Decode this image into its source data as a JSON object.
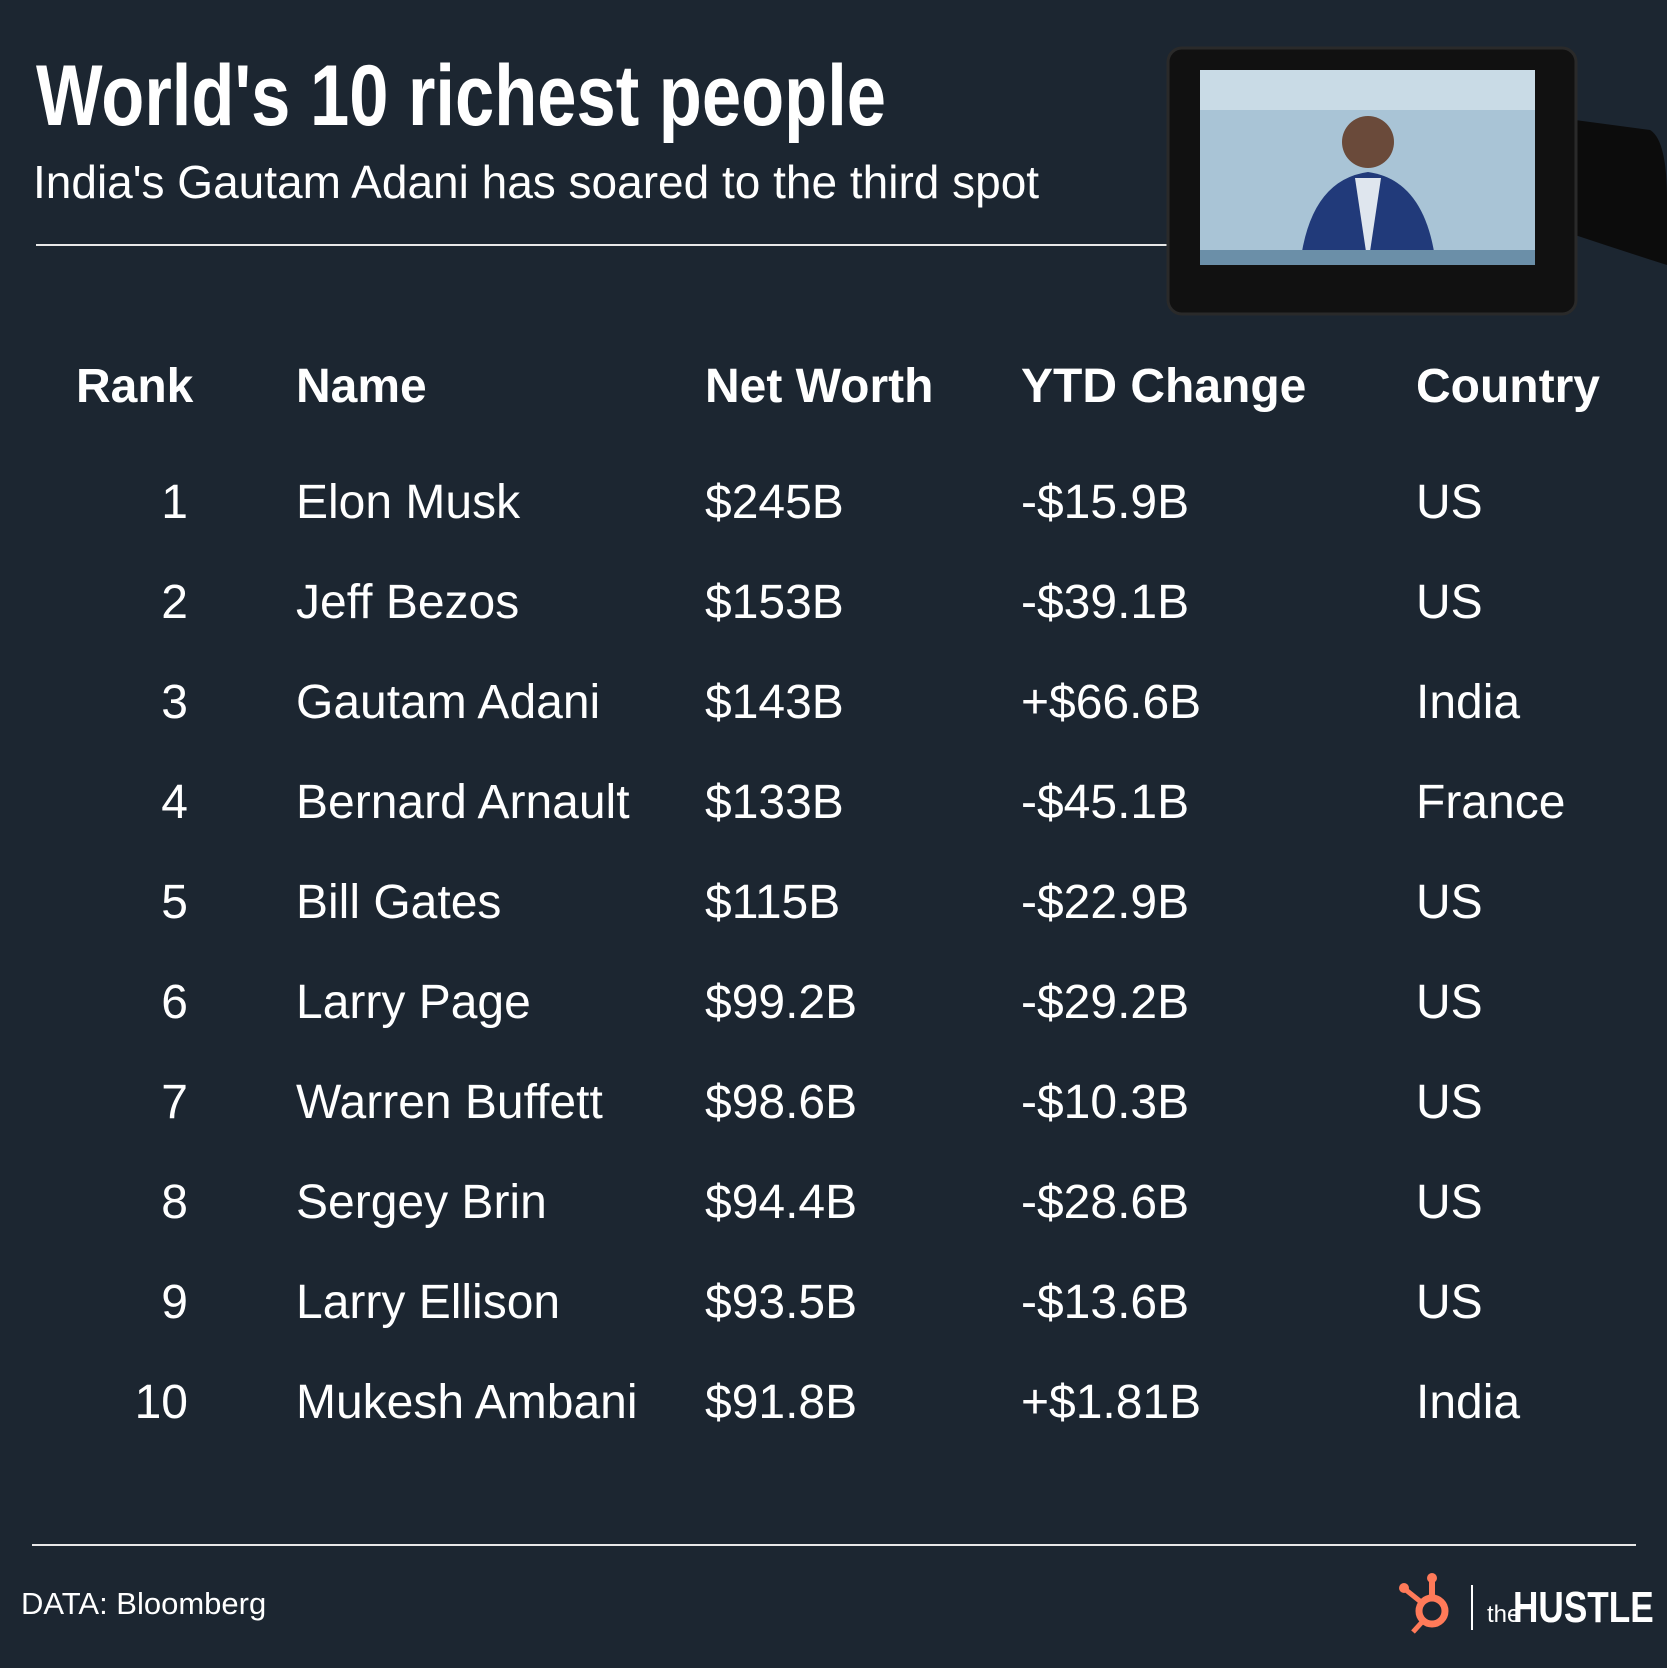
{
  "header": {
    "title": "World's 10 richest people",
    "subtitle": "India's Gautam Adani has soared to the third spot"
  },
  "table": {
    "columns": [
      "Rank",
      "Name",
      "Net Worth",
      "YTD Change",
      "Country"
    ],
    "rows": [
      [
        "1",
        "Elon Musk",
        "$245B",
        "-$15.9B",
        "US"
      ],
      [
        "2",
        "Jeff Bezos",
        "$153B",
        "-$39.1B",
        "US"
      ],
      [
        "3",
        "Gautam Adani",
        "$143B",
        "+$66.6B",
        "India"
      ],
      [
        "4",
        "Bernard Arnault",
        "$133B",
        "-$45.1B",
        "France"
      ],
      [
        "5",
        "Bill Gates",
        "$115B",
        "-$22.9B",
        "US"
      ],
      [
        "6",
        "Larry Page",
        "$99.2B",
        "-$29.2B",
        "US"
      ],
      [
        "7",
        "Warren Buffett",
        "$98.6B",
        "-$10.3B",
        "US"
      ],
      [
        "8",
        "Sergey Brin",
        "$94.4B",
        "-$28.6B",
        "US"
      ],
      [
        "9",
        "Larry Ellison",
        "$93.5B",
        "-$13.6B",
        "US"
      ],
      [
        "10",
        "Mukesh Ambani",
        "$91.8B",
        "+$1.81B",
        "India"
      ]
    ]
  },
  "footer": {
    "source": "DATA: Bloomberg",
    "brand_small": "the",
    "brand": "HUSTLE"
  }
}
